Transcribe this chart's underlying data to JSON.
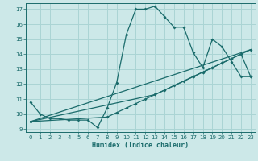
{
  "title": "",
  "xlabel": "Humidex (Indice chaleur)",
  "ylabel": "",
  "bg_color": "#cce8e8",
  "line_color": "#1a6b6b",
  "grid_color": "#aad4d4",
  "xlim": [
    -0.5,
    23.5
  ],
  "ylim": [
    8.8,
    17.4
  ],
  "xticks": [
    0,
    1,
    2,
    3,
    4,
    5,
    6,
    7,
    8,
    9,
    10,
    11,
    12,
    13,
    14,
    15,
    16,
    17,
    18,
    19,
    20,
    21,
    22,
    23
  ],
  "yticks": [
    9,
    10,
    11,
    12,
    13,
    14,
    15,
    16,
    17
  ],
  "line1_x": [
    0,
    1,
    2,
    3,
    4,
    5,
    6,
    7,
    8,
    9,
    10,
    11,
    12,
    13,
    14,
    15,
    16,
    17,
    18,
    19,
    20,
    21,
    22,
    23
  ],
  "line1_y": [
    10.8,
    10.0,
    9.7,
    9.7,
    9.6,
    9.6,
    9.6,
    9.1,
    10.4,
    12.1,
    15.3,
    17.0,
    17.0,
    17.2,
    16.5,
    15.8,
    15.8,
    14.1,
    13.1,
    15.0,
    14.5,
    13.5,
    12.5,
    12.5
  ],
  "line2_x": [
    0,
    23
  ],
  "line2_y": [
    9.5,
    14.3
  ],
  "line3_x": [
    0,
    8,
    9,
    10,
    11,
    12,
    13,
    14,
    15,
    16,
    17,
    18,
    19,
    20,
    21,
    22,
    23
  ],
  "line3_y": [
    9.5,
    9.8,
    10.1,
    10.4,
    10.7,
    11.0,
    11.3,
    11.6,
    11.9,
    12.2,
    12.5,
    12.8,
    13.1,
    13.4,
    13.7,
    14.0,
    14.3
  ],
  "line4_x": [
    0,
    13,
    17,
    18,
    19,
    20,
    21,
    22,
    23
  ],
  "line4_y": [
    9.5,
    11.3,
    12.5,
    12.8,
    13.1,
    13.4,
    13.7,
    14.0,
    12.5
  ]
}
